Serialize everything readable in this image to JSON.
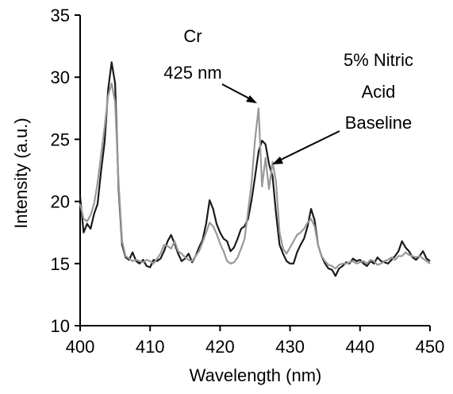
{
  "chart_data": {
    "type": "line",
    "title": "",
    "xlabel": "Wavelength (nm)",
    "ylabel": "Intensity (a.u.)",
    "xlim": [
      400,
      450
    ],
    "ylim": [
      10,
      35
    ],
    "x_ticks": [
      "400",
      "410",
      "420",
      "430",
      "440",
      "450"
    ],
    "y_ticks": [
      "10",
      "15",
      "20",
      "25",
      "30",
      "35"
    ],
    "grid": false,
    "legend": "none",
    "series": [
      {
        "color": "#1a1a1a",
        "x": [
          400,
          400.5,
          401,
          401.5,
          402,
          402.5,
          403,
          403.5,
          404,
          404.5,
          405,
          405.5,
          406,
          406.5,
          407,
          407.5,
          408,
          408.5,
          409,
          409.5,
          410,
          410.5,
          411,
          411.5,
          412,
          412.5,
          413,
          413.5,
          414,
          414.5,
          415,
          415.5,
          416,
          416.5,
          417,
          417.5,
          418,
          418.5,
          419,
          419.5,
          420,
          420.5,
          421,
          421.5,
          422,
          422.5,
          423,
          423.5,
          424,
          424.5,
          425,
          425.5,
          426,
          426.5,
          427,
          427.5,
          428,
          428.5,
          429,
          429.5,
          430,
          430.5,
          431,
          431.5,
          432,
          432.5,
          433,
          433.5,
          434,
          434.5,
          435,
          435.5,
          436,
          436.5,
          437,
          437.5,
          438,
          438.5,
          439,
          439.5,
          440,
          440.5,
          441,
          441.5,
          442,
          442.5,
          443,
          443.5,
          444,
          444.5,
          445,
          445.5,
          446,
          446.5,
          447,
          447.5,
          448,
          448.5,
          449,
          449.5,
          450
        ],
        "values": [
          20.4,
          17.5,
          18.2,
          17.8,
          19.0,
          19.8,
          22.5,
          24.8,
          29.0,
          31.2,
          29.5,
          21.0,
          16.5,
          15.5,
          15.3,
          15.9,
          15.2,
          15.0,
          15.3,
          14.8,
          14.7,
          15.3,
          15.2,
          15.4,
          16.0,
          16.8,
          17.3,
          16.6,
          15.8,
          15.2,
          15.4,
          15.8,
          15.1,
          15.6,
          16.3,
          16.9,
          18.2,
          20.1,
          19.4,
          18.2,
          17.5,
          17.0,
          16.8,
          16.0,
          16.3,
          17.0,
          17.8,
          18.0,
          18.6,
          20.1,
          22.0,
          24.0,
          24.9,
          24.6,
          23.0,
          22.0,
          19.0,
          16.5,
          15.8,
          15.2,
          15.0,
          15.0,
          15.9,
          16.5,
          17.0,
          18.0,
          19.4,
          18.5,
          16.5,
          15.6,
          15.0,
          14.6,
          14.5,
          14.0,
          14.6,
          14.8,
          15.1,
          15.0,
          15.4,
          15.2,
          15.3,
          15.0,
          14.8,
          15.2,
          15.0,
          15.5,
          15.2,
          15.1,
          15.0,
          15.3,
          15.6,
          16.0,
          16.8,
          16.3,
          16.0,
          15.5,
          15.3,
          15.6,
          16.0,
          15.4,
          15.2
        ]
      },
      {
        "color": "#999999",
        "x": [
          400,
          400.5,
          401,
          401.5,
          402,
          402.5,
          403,
          403.5,
          404,
          404.5,
          405,
          405.5,
          406,
          406.5,
          407,
          407.5,
          408,
          408.5,
          409,
          409.5,
          410,
          410.5,
          411,
          411.5,
          412,
          412.5,
          413,
          413.5,
          414,
          414.5,
          415,
          415.5,
          416,
          416.5,
          417,
          417.5,
          418,
          418.5,
          419,
          419.5,
          420,
          420.5,
          421,
          421.5,
          422,
          422.5,
          423,
          423.5,
          424,
          424.5,
          425,
          425.5,
          426,
          426.5,
          427,
          427.5,
          428,
          428.5,
          429,
          429.5,
          430,
          430.5,
          431,
          431.5,
          432,
          432.5,
          433,
          433.5,
          434,
          434.5,
          435,
          435.5,
          436,
          436.5,
          437,
          437.5,
          438,
          438.5,
          439,
          439.5,
          440,
          440.5,
          441,
          441.5,
          442,
          442.5,
          443,
          443.5,
          444,
          444.5,
          445,
          445.5,
          446,
          446.5,
          447,
          447.5,
          448,
          448.5,
          449,
          449.5,
          450
        ],
        "values": [
          19.8,
          18.6,
          18.4,
          18.9,
          19.8,
          21.5,
          23.8,
          26.0,
          28.5,
          29.5,
          28.0,
          21.5,
          16.8,
          15.6,
          15.4,
          15.2,
          15.3,
          15.2,
          15.1,
          15.3,
          15.2,
          15.0,
          15.4,
          15.8,
          16.5,
          16.4,
          16.2,
          16.8,
          16.0,
          15.8,
          15.5,
          15.3,
          15.2,
          15.6,
          16.0,
          16.7,
          17.5,
          18.3,
          18.0,
          17.4,
          16.6,
          16.0,
          15.2,
          15.0,
          15.1,
          15.5,
          16.2,
          17.0,
          19.2,
          21.5,
          25.0,
          27.5,
          21.2,
          23.5,
          21.0,
          23.2,
          21.5,
          17.5,
          16.2,
          15.8,
          16.3,
          16.8,
          17.3,
          17.5,
          17.8,
          18.3,
          18.6,
          18.0,
          16.5,
          15.6,
          15.2,
          14.9,
          14.8,
          14.6,
          14.9,
          15.0,
          15.0,
          15.1,
          15.2,
          15.0,
          15.1,
          15.2,
          15.0,
          15.3,
          15.2,
          14.9,
          15.0,
          15.2,
          15.3,
          15.5,
          15.3,
          15.6,
          15.6,
          15.9,
          15.7,
          15.6,
          15.5,
          15.6,
          15.4,
          15.2,
          15.0
        ]
      }
    ],
    "annotations": [
      {
        "lines": [
          "Cr",
          "425 nm"
        ]
      },
      {
        "lines": [
          "5% Nitric",
          "Acid",
          "Baseline"
        ]
      }
    ]
  }
}
